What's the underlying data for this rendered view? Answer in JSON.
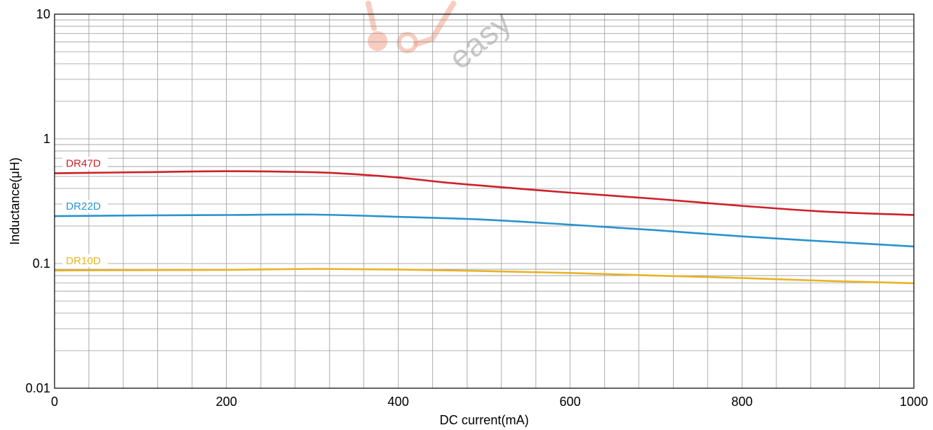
{
  "chart_data": {
    "type": "line",
    "xlabel": "DC current(mA)",
    "ylabel": "Inductance(μH)",
    "xlim": [
      0,
      1000
    ],
    "ylim": [
      0.01,
      10
    ],
    "y_scale": "log",
    "grid": true,
    "x_ticks": [
      "0",
      "200",
      "400",
      "600",
      "800",
      "1000"
    ],
    "y_ticks": [
      "0.01",
      "0.1",
      "1",
      "10"
    ],
    "series": [
      {
        "name": "DR47D",
        "color": "#cc2229",
        "x": [
          0,
          100,
          200,
          300,
          350,
          400,
          450,
          500,
          600,
          700,
          800,
          900,
          1000
        ],
        "y": [
          0.53,
          0.54,
          0.55,
          0.54,
          0.52,
          0.49,
          0.45,
          0.42,
          0.37,
          0.33,
          0.29,
          0.26,
          0.245
        ]
      },
      {
        "name": "DR22D",
        "color": "#2a92cf",
        "x": [
          0,
          100,
          200,
          300,
          400,
          500,
          600,
          700,
          800,
          900,
          1000
        ],
        "y": [
          0.24,
          0.243,
          0.245,
          0.247,
          0.237,
          0.225,
          0.205,
          0.185,
          0.165,
          0.15,
          0.137
        ]
      },
      {
        "name": "DR10D",
        "color": "#e8b327",
        "x": [
          0,
          100,
          200,
          300,
          400,
          500,
          600,
          700,
          800,
          900,
          1000
        ],
        "y": [
          0.088,
          0.0885,
          0.089,
          0.0905,
          0.0895,
          0.087,
          0.084,
          0.08,
          0.0765,
          0.0725,
          0.0695
        ]
      }
    ],
    "watermark": "easy"
  }
}
